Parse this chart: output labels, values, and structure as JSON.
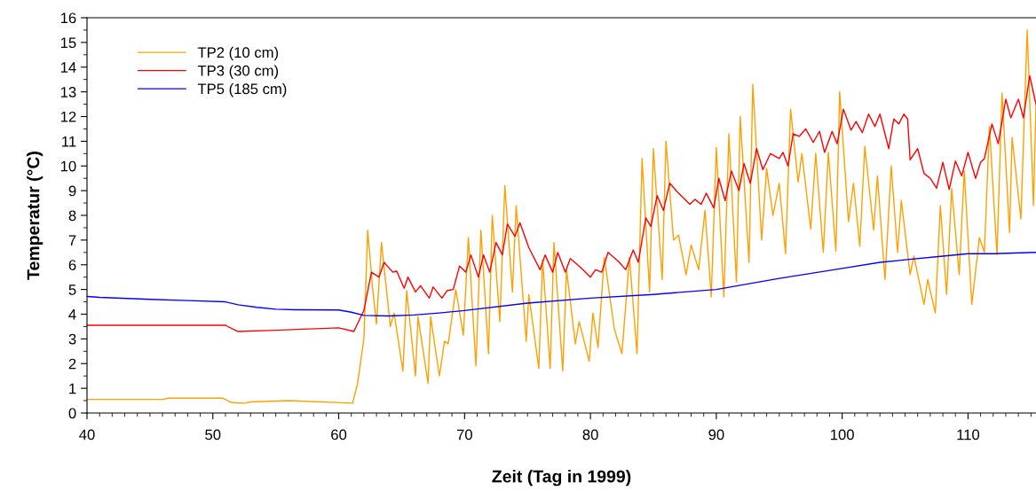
{
  "chart_data": {
    "type": "line",
    "xlabel": "Zeit (Tag in 1999)",
    "ylabel": "Temperatur (°C)",
    "xlim": [
      40,
      115.4
    ],
    "xticks": [
      40,
      50,
      60,
      70,
      80,
      90,
      100,
      110
    ],
    "ylim": [
      0,
      16
    ],
    "yticks": [
      0,
      1,
      2,
      3,
      4,
      5,
      6,
      7,
      8,
      9,
      10,
      11,
      12,
      13,
      14,
      15,
      16
    ],
    "grid": false,
    "legend": "top left",
    "marker": "none",
    "line_style": "solid",
    "series": [
      {
        "name": "TP2 (10 cm)",
        "color": "#ffa000",
        "x": [
          40,
          46,
          46.5,
          50.8,
          51.5,
          52.5,
          53,
          56,
          61.1,
          61.5,
          62.0,
          62.3,
          62.7,
          63.0,
          63.4,
          64.1,
          64.4,
          65.1,
          65.4,
          66.1,
          66.3,
          67.1,
          67.3,
          68.0,
          68.4,
          68.7,
          69.3,
          69.9,
          70.3,
          70.9,
          71.3,
          71.9,
          72.2,
          72.8,
          73.2,
          73.8,
          74.1,
          74.9,
          75.1,
          75.9,
          76.2,
          76.8,
          77.1,
          77.8,
          78.1,
          78.8,
          79.1,
          79.9,
          80.2,
          80.6,
          81.1,
          81.9,
          82.5,
          83.1,
          83.7,
          84.1,
          84.7,
          85.0,
          85.7,
          86.0,
          86.6,
          87.0,
          87.6,
          88.0,
          88.6,
          89.1,
          89.6,
          90.0,
          90.6,
          91.0,
          91.6,
          91.9,
          92.6,
          92.9,
          93.6,
          94.0,
          94.5,
          95.0,
          95.5,
          95.9,
          96.5,
          96.8,
          97.5,
          97.9,
          98.5,
          98.9,
          99.5,
          99.8,
          100.5,
          100.9,
          101.4,
          101.8,
          102.5,
          102.8,
          103.4,
          103.9,
          104.4,
          104.7,
          105.4,
          105.7,
          106.5,
          106.8,
          107.4,
          107.8,
          108.3,
          108.7,
          109.3,
          109.7,
          110.3,
          110.9,
          111.3,
          111.7,
          112.3,
          112.7,
          113.3,
          113.5,
          114.2,
          114.7,
          115.2,
          115.4
        ],
        "values": [
          0.55,
          0.55,
          0.6,
          0.6,
          0.42,
          0.4,
          0.45,
          0.5,
          0.4,
          1.2,
          3.0,
          7.4,
          5.0,
          3.6,
          6.9,
          3.5,
          4.05,
          1.7,
          4.95,
          1.5,
          3.9,
          1.2,
          3.9,
          1.5,
          2.9,
          2.8,
          5.0,
          3.15,
          7.1,
          1.9,
          7.4,
          2.4,
          8.0,
          3.7,
          9.2,
          4.9,
          8.4,
          2.9,
          4.8,
          1.8,
          6.2,
          1.8,
          6.9,
          1.7,
          5.8,
          2.8,
          3.7,
          2.1,
          4.05,
          2.65,
          6.3,
          3.4,
          2.4,
          6.3,
          2.4,
          10.3,
          4.9,
          10.7,
          5.4,
          11.0,
          7.0,
          7.2,
          5.6,
          6.8,
          5.8,
          8.2,
          4.7,
          10.75,
          4.7,
          11.3,
          5.3,
          12.0,
          6.1,
          13.3,
          7.0,
          9.9,
          8.0,
          9.3,
          6.45,
          12.3,
          9.35,
          10.5,
          7.45,
          10.5,
          6.5,
          10.55,
          6.55,
          13.0,
          7.75,
          9.3,
          6.75,
          10.8,
          7.4,
          9.6,
          5.4,
          10.0,
          6.5,
          8.6,
          5.6,
          6.35,
          4.4,
          5.4,
          4.05,
          8.4,
          4.8,
          9.1,
          5.6,
          9.8,
          4.4,
          7.1,
          6.5,
          11.6,
          6.4,
          12.95,
          7.3,
          11.15,
          7.85,
          15.5,
          8.4,
          12.5
        ]
      },
      {
        "name": "TP3 (30 cm)",
        "color": "#ff0000",
        "x": [
          40,
          51,
          52,
          55,
          60,
          61.2,
          62.0,
          62.6,
          63.2,
          63.6,
          64.3,
          64.6,
          65.2,
          65.5,
          66.1,
          66.5,
          67.2,
          67.5,
          68.2,
          68.6,
          69.1,
          69.6,
          70.1,
          70.5,
          71.1,
          71.5,
          72.0,
          72.5,
          73.0,
          73.4,
          74.0,
          74.4,
          75.1,
          76.0,
          76.4,
          77.0,
          77.4,
          78.0,
          78.4,
          79.2,
          80.0,
          80.4,
          80.9,
          81.4,
          82.3,
          82.8,
          83.4,
          83.8,
          84.4,
          84.8,
          85.3,
          85.8,
          86.3,
          86.9,
          87.9,
          88.3,
          88.8,
          89.2,
          89.8,
          90.2,
          90.7,
          91.2,
          91.8,
          92.2,
          92.7,
          93.2,
          93.7,
          94.3,
          95.0,
          95.3,
          95.7,
          96.1,
          96.6,
          97.1,
          97.7,
          98.2,
          98.6,
          99.2,
          99.6,
          100.1,
          100.7,
          101.1,
          101.6,
          102.1,
          102.6,
          103.0,
          103.7,
          104.1,
          104.5,
          104.9,
          105.2,
          105.4,
          106.0,
          106.5,
          107.0,
          107.5,
          108.0,
          108.5,
          109.0,
          109.5,
          110.0,
          110.6,
          111.0,
          111.3,
          111.9,
          112.4,
          113.0,
          113.4,
          114.0,
          114.4,
          114.9,
          115.4
        ],
        "values": [
          3.55,
          3.55,
          3.3,
          3.35,
          3.45,
          3.3,
          4.15,
          5.7,
          5.5,
          6.1,
          5.7,
          5.75,
          5.05,
          5.5,
          4.9,
          5.15,
          4.65,
          5.1,
          4.65,
          4.95,
          5.0,
          5.95,
          5.7,
          6.4,
          5.5,
          6.4,
          5.7,
          6.9,
          6.4,
          7.65,
          7.15,
          7.7,
          6.7,
          5.8,
          6.4,
          5.7,
          6.5,
          5.7,
          6.25,
          5.9,
          5.5,
          5.8,
          5.7,
          6.5,
          6.1,
          5.8,
          6.6,
          6.1,
          7.9,
          7.55,
          8.8,
          8.2,
          9.3,
          8.95,
          8.45,
          8.65,
          8.45,
          8.9,
          8.3,
          9.5,
          8.6,
          9.8,
          9.0,
          10.1,
          9.3,
          10.7,
          9.85,
          10.5,
          10.3,
          10.55,
          10.0,
          11.3,
          11.2,
          11.5,
          10.95,
          11.4,
          10.55,
          11.4,
          10.9,
          12.3,
          11.45,
          11.8,
          11.35,
          12.1,
          11.6,
          12.1,
          10.7,
          11.9,
          11.7,
          12.1,
          11.9,
          10.25,
          10.7,
          9.7,
          9.5,
          9.1,
          10.15,
          9.05,
          10.2,
          9.6,
          10.55,
          9.5,
          10.15,
          10.3,
          11.7,
          10.9,
          12.7,
          11.95,
          12.7,
          11.95,
          13.65,
          12.5
        ]
      },
      {
        "name": "TP5 (185 cm)",
        "color": "#0000ff",
        "x": [
          40,
          41,
          45,
          48,
          51,
          52,
          53.5,
          55,
          56.5,
          60,
          61,
          62,
          64,
          66,
          68,
          70,
          75,
          80,
          85,
          90,
          95,
          100,
          103,
          105,
          108,
          110,
          112,
          115.4
        ],
        "values": [
          4.72,
          4.68,
          4.6,
          4.55,
          4.5,
          4.38,
          4.28,
          4.2,
          4.18,
          4.17,
          4.08,
          3.95,
          3.93,
          3.97,
          4.05,
          4.15,
          4.45,
          4.65,
          4.8,
          5.0,
          5.45,
          5.85,
          6.1,
          6.2,
          6.35,
          6.45,
          6.45,
          6.5
        ]
      }
    ]
  }
}
